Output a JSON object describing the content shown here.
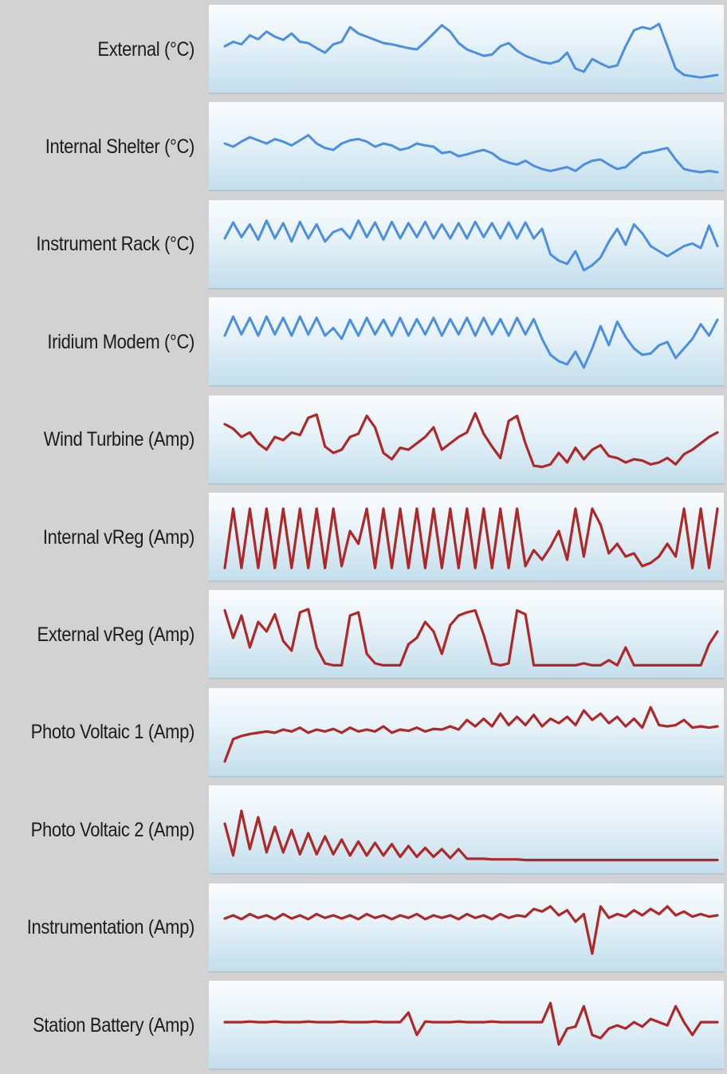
{
  "chart_data": {
    "type": "line",
    "title": "",
    "colors": {
      "temperature": "#4a8fe0",
      "current": "#b02727"
    },
    "series": [
      {
        "name": "External (°C)",
        "color": "temperature",
        "values": [
          0.55,
          0.62,
          0.58,
          0.72,
          0.66,
          0.78,
          0.7,
          0.65,
          0.75,
          0.62,
          0.6,
          0.52,
          0.45,
          0.58,
          0.62,
          0.85,
          0.75,
          0.7,
          0.65,
          0.6,
          0.58,
          0.55,
          0.52,
          0.5,
          0.62,
          0.75,
          0.88,
          0.78,
          0.6,
          0.5,
          0.45,
          0.4,
          0.42,
          0.55,
          0.6,
          0.48,
          0.4,
          0.35,
          0.3,
          0.28,
          0.32,
          0.45,
          0.2,
          0.15,
          0.35,
          0.28,
          0.22,
          0.25,
          0.55,
          0.8,
          0.85,
          0.82,
          0.9,
          0.55,
          0.2,
          0.1,
          0.08,
          0.06,
          0.08,
          0.1
        ]
      },
      {
        "name": "Internal Shelter (°C)",
        "color": "temperature",
        "values": [
          0.55,
          0.5,
          0.58,
          0.65,
          0.6,
          0.55,
          0.62,
          0.58,
          0.52,
          0.6,
          0.68,
          0.55,
          0.48,
          0.45,
          0.55,
          0.6,
          0.62,
          0.58,
          0.5,
          0.55,
          0.52,
          0.45,
          0.48,
          0.55,
          0.52,
          0.5,
          0.4,
          0.42,
          0.35,
          0.38,
          0.42,
          0.45,
          0.4,
          0.3,
          0.25,
          0.22,
          0.28,
          0.2,
          0.15,
          0.12,
          0.15,
          0.18,
          0.12,
          0.22,
          0.28,
          0.3,
          0.22,
          0.15,
          0.18,
          0.3,
          0.4,
          0.42,
          0.45,
          0.48,
          0.3,
          0.15,
          0.12,
          0.1,
          0.12,
          0.1
        ]
      },
      {
        "name": "Instrument Rack (°C)",
        "color": "temperature",
        "values": [
          0.6,
          0.85,
          0.62,
          0.82,
          0.58,
          0.88,
          0.6,
          0.84,
          0.55,
          0.86,
          0.6,
          0.82,
          0.55,
          0.7,
          0.75,
          0.6,
          0.88,
          0.62,
          0.85,
          0.58,
          0.86,
          0.6,
          0.84,
          0.62,
          0.86,
          0.6,
          0.82,
          0.6,
          0.84,
          0.6,
          0.86,
          0.62,
          0.84,
          0.6,
          0.85,
          0.6,
          0.85,
          0.6,
          0.75,
          0.35,
          0.25,
          0.2,
          0.4,
          0.1,
          0.18,
          0.3,
          0.55,
          0.75,
          0.5,
          0.82,
          0.68,
          0.48,
          0.4,
          0.32,
          0.4,
          0.48,
          0.52,
          0.45,
          0.8,
          0.48
        ]
      },
      {
        "name": "Iridium Modem (°C)",
        "color": "temperature",
        "values": [
          0.6,
          0.9,
          0.62,
          0.88,
          0.6,
          0.9,
          0.62,
          0.88,
          0.6,
          0.9,
          0.62,
          0.88,
          0.6,
          0.72,
          0.55,
          0.85,
          0.6,
          0.88,
          0.62,
          0.85,
          0.6,
          0.88,
          0.6,
          0.86,
          0.62,
          0.88,
          0.6,
          0.86,
          0.62,
          0.88,
          0.6,
          0.88,
          0.62,
          0.86,
          0.6,
          0.88,
          0.62,
          0.86,
          0.55,
          0.3,
          0.2,
          0.15,
          0.35,
          0.1,
          0.4,
          0.75,
          0.45,
          0.82,
          0.58,
          0.4,
          0.3,
          0.32,
          0.45,
          0.5,
          0.25,
          0.4,
          0.55,
          0.78,
          0.6,
          0.85
        ]
      },
      {
        "name": "Wind Turbine (Amp)",
        "color": "current",
        "values": [
          0.75,
          0.68,
          0.55,
          0.62,
          0.45,
          0.35,
          0.55,
          0.5,
          0.62,
          0.58,
          0.85,
          0.9,
          0.4,
          0.3,
          0.35,
          0.55,
          0.6,
          0.88,
          0.7,
          0.3,
          0.2,
          0.38,
          0.35,
          0.45,
          0.55,
          0.7,
          0.35,
          0.45,
          0.55,
          0.62,
          0.92,
          0.6,
          0.4,
          0.22,
          0.8,
          0.88,
          0.45,
          0.1,
          0.08,
          0.12,
          0.3,
          0.15,
          0.38,
          0.2,
          0.35,
          0.42,
          0.25,
          0.22,
          0.15,
          0.2,
          0.18,
          0.12,
          0.15,
          0.22,
          0.12,
          0.28,
          0.35,
          0.45,
          0.55,
          0.62
        ]
      },
      {
        "name": "Internal vReg (Amp)",
        "color": "current",
        "values": [
          0.02,
          0.95,
          0.02,
          0.95,
          0.02,
          0.95,
          0.02,
          0.95,
          0.02,
          0.95,
          0.02,
          0.95,
          0.02,
          0.95,
          0.05,
          0.6,
          0.4,
          0.95,
          0.02,
          0.95,
          0.02,
          0.95,
          0.02,
          0.95,
          0.02,
          0.95,
          0.02,
          0.95,
          0.02,
          0.95,
          0.02,
          0.95,
          0.02,
          0.95,
          0.02,
          0.95,
          0.05,
          0.3,
          0.15,
          0.35,
          0.6,
          0.15,
          0.95,
          0.2,
          0.95,
          0.7,
          0.25,
          0.4,
          0.2,
          0.25,
          0.05,
          0.1,
          0.2,
          0.4,
          0.2,
          0.95,
          0.02,
          0.95,
          0.02,
          0.95
        ]
      },
      {
        "name": "External vReg (Amp)",
        "color": "current",
        "values": [
          0.88,
          0.45,
          0.8,
          0.3,
          0.7,
          0.55,
          0.82,
          0.4,
          0.25,
          0.85,
          0.9,
          0.3,
          0.05,
          0.02,
          0.02,
          0.8,
          0.85,
          0.2,
          0.05,
          0.02,
          0.02,
          0.02,
          0.35,
          0.45,
          0.7,
          0.55,
          0.2,
          0.65,
          0.8,
          0.85,
          0.88,
          0.5,
          0.05,
          0.02,
          0.05,
          0.88,
          0.82,
          0.02,
          0.02,
          0.02,
          0.02,
          0.02,
          0.02,
          0.05,
          0.02,
          0.02,
          0.1,
          0.02,
          0.3,
          0.02,
          0.02,
          0.02,
          0.02,
          0.02,
          0.02,
          0.02,
          0.02,
          0.02,
          0.35,
          0.55
        ]
      },
      {
        "name": "Photo Voltaic 1 (Amp)",
        "color": "current",
        "values": [
          0.05,
          0.4,
          0.45,
          0.48,
          0.5,
          0.52,
          0.5,
          0.55,
          0.52,
          0.58,
          0.5,
          0.55,
          0.52,
          0.56,
          0.5,
          0.58,
          0.52,
          0.55,
          0.52,
          0.6,
          0.5,
          0.55,
          0.53,
          0.58,
          0.52,
          0.56,
          0.55,
          0.6,
          0.55,
          0.7,
          0.6,
          0.72,
          0.6,
          0.8,
          0.62,
          0.75,
          0.62,
          0.78,
          0.6,
          0.72,
          0.65,
          0.75,
          0.62,
          0.85,
          0.7,
          0.8,
          0.65,
          0.75,
          0.6,
          0.72,
          0.58,
          0.9,
          0.62,
          0.6,
          0.62,
          0.7,
          0.58,
          0.6,
          0.58,
          0.6
        ]
      },
      {
        "name": "Photo Voltaic 2 (Amp)",
        "color": "current",
        "values": [
          0.6,
          0.1,
          0.8,
          0.2,
          0.7,
          0.15,
          0.55,
          0.15,
          0.5,
          0.12,
          0.45,
          0.12,
          0.4,
          0.12,
          0.35,
          0.1,
          0.32,
          0.1,
          0.3,
          0.1,
          0.28,
          0.08,
          0.25,
          0.08,
          0.22,
          0.08,
          0.2,
          0.06,
          0.2,
          0.05,
          0.05,
          0.05,
          0.04,
          0.04,
          0.04,
          0.04,
          0.03,
          0.03,
          0.03,
          0.03,
          0.03,
          0.03,
          0.03,
          0.03,
          0.03,
          0.03,
          0.03,
          0.03,
          0.03,
          0.03,
          0.03,
          0.03,
          0.03,
          0.03,
          0.03,
          0.03,
          0.03,
          0.03,
          0.03,
          0.03
        ]
      },
      {
        "name": "Instrumentation (Amp)",
        "color": "current",
        "values": [
          0.65,
          0.7,
          0.64,
          0.72,
          0.66,
          0.7,
          0.64,
          0.72,
          0.65,
          0.7,
          0.64,
          0.72,
          0.66,
          0.7,
          0.65,
          0.7,
          0.64,
          0.72,
          0.66,
          0.7,
          0.64,
          0.7,
          0.66,
          0.72,
          0.64,
          0.7,
          0.66,
          0.7,
          0.64,
          0.72,
          0.66,
          0.7,
          0.64,
          0.72,
          0.66,
          0.7,
          0.68,
          0.8,
          0.76,
          0.84,
          0.7,
          0.78,
          0.6,
          0.72,
          0.1,
          0.84,
          0.66,
          0.72,
          0.68,
          0.78,
          0.7,
          0.8,
          0.72,
          0.84,
          0.7,
          0.76,
          0.68,
          0.72,
          0.68,
          0.7
        ]
      },
      {
        "name": "Station Battery (Amp)",
        "color": "current",
        "values": [
          0.55,
          0.55,
          0.55,
          0.56,
          0.55,
          0.55,
          0.56,
          0.55,
          0.55,
          0.55,
          0.56,
          0.55,
          0.55,
          0.55,
          0.56,
          0.55,
          0.55,
          0.55,
          0.56,
          0.55,
          0.55,
          0.55,
          0.7,
          0.35,
          0.56,
          0.55,
          0.55,
          0.55,
          0.56,
          0.55,
          0.55,
          0.55,
          0.56,
          0.55,
          0.55,
          0.55,
          0.55,
          0.55,
          0.55,
          0.85,
          0.2,
          0.45,
          0.48,
          0.8,
          0.35,
          0.3,
          0.45,
          0.5,
          0.45,
          0.55,
          0.48,
          0.6,
          0.55,
          0.5,
          0.8,
          0.55,
          0.35,
          0.55,
          0.55,
          0.55
        ]
      }
    ]
  }
}
